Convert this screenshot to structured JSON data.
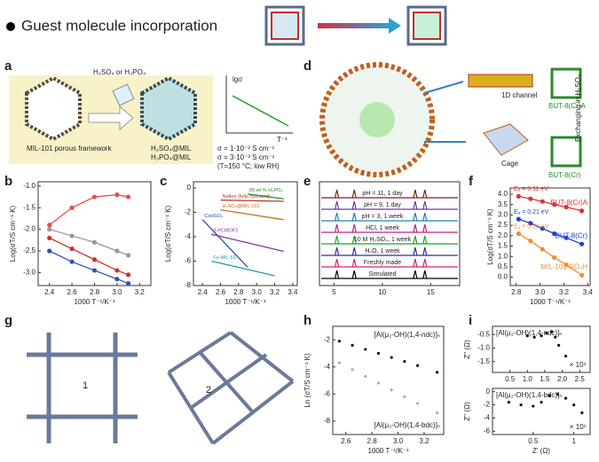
{
  "header": {
    "title": "Guest molecule incorporation"
  },
  "panels": {
    "a": "a",
    "b": "b",
    "c": "c",
    "d": "d",
    "e": "e",
    "f": "f",
    "g": "g",
    "h": "h",
    "i": "i"
  },
  "panel_a": {
    "acid": "H₂SO₄ or H₃PO₄",
    "framework": "MIL-101 porous framework",
    "product1": "H₂SO₄@MIL",
    "product2": "H₃PO₄@MIL",
    "inset_y": "lgσ",
    "inset_x": "T⁻¹",
    "sigma1": "σ = 1·10⁻² S cm⁻¹",
    "sigma2": "σ = 3·10⁻³ S cm⁻¹",
    "condition": "(T=150 °C; low RH)"
  },
  "panel_d": {
    "channel": "1D channel",
    "cage": "Cage",
    "mof_a": "BUT-8(Cr)A",
    "mof": "BUT-8(Cr)",
    "exchange": "Exchanging in H₂SO₄"
  },
  "panel_g": {
    "label1": "1",
    "label2": "2"
  },
  "chart_data": [
    {
      "type": "line",
      "xlabel": "1000 T⁻¹/K⁻¹",
      "ylabel": "Log(σT/S cm⁻¹ K)",
      "xlim": [
        2.3,
        3.3
      ],
      "ylim": [
        -3.3,
        -0.9
      ],
      "xticks": [
        2.4,
        2.6,
        2.8,
        {
          "value": 3,
          "label": "3.0"
        },
        3.2
      ],
      "yticks": [
        {
          "value": -1,
          "label": "-1.0"
        },
        -1.5,
        {
          "value": -2,
          "label": "-2.0"
        },
        -2.5,
        {
          "value": -3,
          "label": "-3.0"
        }
      ],
      "x": [
        2.4,
        2.6,
        2.8,
        3.0,
        3.1
      ],
      "series": [
        {
          "color": "#e05050",
          "values": [
            -1.9,
            -1.5,
            -1.25,
            -1.2,
            -1.25
          ]
        },
        {
          "color": "#999999",
          "values": [
            -2.0,
            -2.15,
            -2.3,
            -2.5,
            -2.6
          ]
        },
        {
          "color": "#d03030",
          "values": [
            -2.2,
            -2.45,
            -2.7,
            -2.95,
            -3.05
          ]
        },
        {
          "color": "#3050c0",
          "values": [
            -2.5,
            -2.75,
            -2.95,
            -3.15,
            -3.25
          ]
        }
      ]
    },
    {
      "type": "line",
      "xlabel": "1000 T⁻¹/K⁻¹",
      "ylabel": "Log(σT/S cm⁻¹ K)",
      "xlim": [
        2.3,
        3.45
      ],
      "ylim": [
        -8,
        0.5
      ],
      "xticks": [
        2.4,
        2.6,
        2.8,
        {
          "value": 3,
          "label": "3.0"
        },
        3.2,
        3.4
      ],
      "yticks": [
        0,
        -2,
        -4,
        -6,
        -8
      ],
      "series": [
        {
          "name": "Nafion (fully hydrated)",
          "color": "#c03030",
          "x": [
            2.6,
            3.3
          ],
          "values": [
            -1.0,
            -1.1
          ]
        },
        {
          "name": "85 wt % H₃PO₄",
          "color": "#2a8a2a",
          "x": [
            2.9,
            3.3
          ],
          "values": [
            -0.5,
            -0.9
          ]
        },
        {
          "name": "H₂SO₄@MIL-101",
          "color": "#c07020",
          "x": [
            2.6,
            3.3
          ],
          "values": [
            -1.8,
            -2.6
          ]
        },
        {
          "name": "CsHSO₄",
          "color": "#2050b0",
          "x": [
            2.4,
            2.9
          ],
          "values": [
            -2.6,
            -6.5
          ]
        },
        {
          "name": "β-PCMOF2",
          "color": "#8030a0",
          "x": [
            2.5,
            3.3
          ],
          "values": [
            -3.8,
            -5.2
          ]
        },
        {
          "name": "Fe-MIL-53",
          "color": "#20a0a0",
          "x": [
            2.5,
            3.2
          ],
          "values": [
            -6.0,
            -7.2
          ]
        }
      ]
    },
    {
      "type": "spectra",
      "xlim": [
        3.5,
        18
      ],
      "xticks": [
        5,
        10,
        15
      ],
      "peaks": [
        5.3,
        7.1,
        13.4,
        14.4
      ],
      "series": [
        {
          "name": "Simulated",
          "color": "#000000"
        },
        {
          "name": "Freshly made",
          "color": "#e0206a"
        },
        {
          "name": "H₂O, 1 week",
          "color": "#303090"
        },
        {
          "name": "10 M H₂SO₄, 1 week",
          "color": "#20a030"
        },
        {
          "name": "HCl, 1 week",
          "color": "#c02080"
        },
        {
          "name": "pH = 3, 1 week",
          "color": "#2080c0"
        },
        {
          "name": "pH = 9, 1 day",
          "color": "#6a3aa0"
        },
        {
          "name": "pH = 11, 1 day",
          "color": "#7a2020"
        }
      ]
    },
    {
      "type": "line",
      "xlabel": "1000 T⁻¹/K⁻¹",
      "ylabel": "Log(σT/S cm⁻¹ K)",
      "xlim": [
        2.75,
        3.42
      ],
      "ylim": [
        -0.4,
        4.3
      ],
      "xticks": [
        2.8,
        {
          "value": 3,
          "label": "3.0"
        },
        3.2,
        3.4
      ],
      "yticks": [
        {
          "value": 0,
          "label": "0.0"
        },
        0.5,
        {
          "value": 1,
          "label": "1.0"
        },
        1.5,
        {
          "value": 2,
          "label": "2.0"
        },
        2.5,
        {
          "value": 3,
          "label": "3.0"
        },
        3.5,
        {
          "value": 4,
          "label": "4.0"
        }
      ],
      "x": [
        2.82,
        2.92,
        3.02,
        3.12,
        3.22,
        3.35
      ],
      "series": [
        {
          "name": "BUT-8(Cr)A",
          "color": "#e03030",
          "values": [
            3.9,
            3.78,
            3.65,
            3.5,
            3.38,
            3.2
          ]
        },
        {
          "name": "BUT-8(Cr)",
          "color": "#2040d0",
          "values": [
            2.8,
            2.6,
            2.35,
            2.1,
            1.9,
            1.6
          ]
        },
        {
          "name": "MIL-101-SO₃H",
          "color": "#f09030",
          "values": [
            2.1,
            1.75,
            1.35,
            0.95,
            0.6,
            0.1
          ]
        }
      ],
      "annotations": [
        "Eₐ = 0.11 eV",
        "Eₐ = 0.21 eV",
        "Eₐ = 0.23 eV"
      ]
    },
    {
      "type": "scatter",
      "xlabel": "1000 T⁻¹/K⁻¹",
      "ylabel": "Ln (σT/S cm⁻¹ K)",
      "xlim": [
        2.5,
        3.35
      ],
      "ylim": [
        -9,
        -1
      ],
      "xticks": [
        2.6,
        2.8,
        {
          "value": 3,
          "label": "3.0"
        },
        3.2
      ],
      "yticks": [
        -2,
        -4,
        -6,
        -8
      ],
      "x": [
        2.55,
        2.65,
        2.75,
        2.85,
        2.95,
        3.05,
        3.15,
        3.3
      ],
      "series": [
        {
          "name": "[Al(μ₂-OH)(1,4-ndc)]ₙ",
          "color": "#111111",
          "values": [
            -2.1,
            -2.4,
            -2.7,
            -3.0,
            -3.3,
            -3.6,
            -3.9,
            -4.4
          ]
        },
        {
          "name": "[Al(μ₂-OH)(1,4-bdc)]ₙ",
          "color": "#aaaaaa",
          "values": [
            -3.7,
            -4.2,
            -4.7,
            -5.2,
            -5.7,
            -6.2,
            -6.7,
            -7.4
          ]
        }
      ]
    },
    {
      "type": "scatter",
      "ylabel": "Z'' (Ω)",
      "xlim": [
        0,
        2.8
      ],
      "ylim": [
        -1.9,
        -0.2
      ],
      "xticks": [
        0.5,
        {
          "value": 1,
          "label": "1.0"
        },
        1.5,
        {
          "value": 2,
          "label": "2.0"
        },
        2.5
      ],
      "yticks": [
        -1.5,
        {
          "value": -1,
          "label": "-1.0"
        },
        -0.5
      ],
      "title": "[Al(μ₂-OH)(1,4-ndc)]ₙ",
      "scale": "× 10⁴",
      "x": [
        1.0,
        1.2,
        1.4,
        1.55,
        1.7,
        1.8,
        1.9,
        2.1
      ],
      "series": [
        {
          "color": "#111111",
          "values": [
            -0.55,
            -0.6,
            -0.55,
            -0.45,
            -0.4,
            -0.6,
            -0.9,
            -1.3
          ]
        }
      ]
    },
    {
      "type": "scatter",
      "xlabel": "Z' (Ω)",
      "ylabel": "Z'' (Ω)",
      "xlim": [
        0,
        1.2
      ],
      "ylim": [
        -6.5,
        0.5
      ],
      "xticks": [
        0.5,
        1
      ],
      "yticks": [
        -6,
        -4,
        -2,
        0
      ],
      "title": "[Al(μ₂-OH)(1,4-bdc)]ₙ",
      "scale": "× 10⁵",
      "x": [
        0.2,
        0.35,
        0.5,
        0.6,
        0.7,
        0.8,
        0.9,
        1.0,
        1.1
      ],
      "series": [
        {
          "color": "#111111",
          "values": [
            -1.6,
            -2.0,
            -2.2,
            -1.6,
            -0.6,
            -0.4,
            -1.0,
            -2.0,
            -3.2
          ]
        }
      ]
    }
  ]
}
